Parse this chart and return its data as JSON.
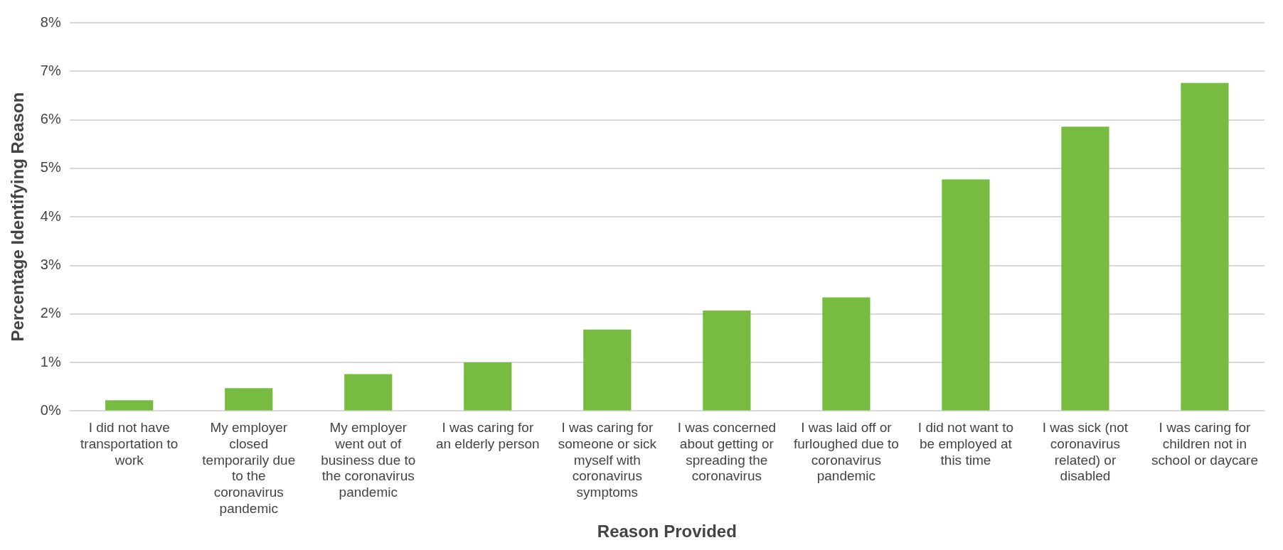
{
  "chart_data": {
    "type": "bar",
    "xlabel": "Reason Provided",
    "ylabel": "Percentage Identifying Reason",
    "categories": [
      "I did not have transportation to work",
      "My employer closed temporarily due to the coronavirus pandemic",
      "My employer went out of business due to the coronavirus pandemic",
      "I was caring for an elderly person",
      "I was caring for someone or sick myself with coronavirus symptoms",
      "I was concerned about getting or spreading the coronavirus",
      "I was laid off or furloughed due to coronavirus pandemic",
      "I did not want to be employed at this time",
      "I was sick (not coronavirus related) or disabled",
      "I was caring for children not in school or daycare"
    ],
    "values": [
      0.22,
      0.47,
      0.76,
      1.0,
      1.68,
      2.07,
      2.34,
      4.77,
      5.86,
      6.76
    ],
    "color": "#77bb41",
    "ylim": [
      0,
      8
    ],
    "yticks": [
      {
        "value": 0,
        "label": "0%"
      },
      {
        "value": 1,
        "label": "1%"
      },
      {
        "value": 2,
        "label": "2%"
      },
      {
        "value": 3,
        "label": "3%"
      },
      {
        "value": 4,
        "label": "4%"
      },
      {
        "value": 5,
        "label": "5%"
      },
      {
        "value": 6,
        "label": "6%"
      },
      {
        "value": 7,
        "label": "7%"
      },
      {
        "value": 8,
        "label": "8%"
      }
    ],
    "grid": "y"
  }
}
